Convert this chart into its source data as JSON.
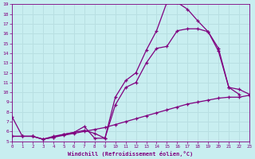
{
  "background_color": "#c8eef0",
  "grid_color": "#b8dfe2",
  "line_color": "#800080",
  "xlabel": "Windchill (Refroidissement éolien,°C)",
  "xlim": [
    0,
    23
  ],
  "ylim": [
    5,
    19
  ],
  "yticks": [
    5,
    6,
    7,
    8,
    9,
    10,
    11,
    12,
    13,
    14,
    15,
    16,
    17,
    18,
    19
  ],
  "xticks": [
    0,
    1,
    2,
    3,
    4,
    5,
    6,
    7,
    8,
    9,
    10,
    11,
    12,
    13,
    14,
    15,
    16,
    17,
    18,
    19,
    20,
    21,
    22,
    23
  ],
  "line1_x": [
    0,
    1,
    2,
    3,
    4,
    5,
    6,
    7,
    8,
    9,
    10,
    11,
    12,
    13,
    14,
    15,
    16,
    17,
    18,
    19,
    20,
    21,
    22
  ],
  "line1_y": [
    7.5,
    5.5,
    5.5,
    5.2,
    5.5,
    5.7,
    5.9,
    6.1,
    5.8,
    5.3,
    9.5,
    11.2,
    12.0,
    14.3,
    16.3,
    19.2,
    19.2,
    18.5,
    17.3,
    16.2,
    14.2,
    10.5,
    9.8
  ],
  "line2_x": [
    0,
    1,
    2,
    3,
    4,
    5,
    6,
    7,
    8,
    9,
    10,
    11,
    12,
    13,
    14,
    15,
    16,
    17,
    18,
    19,
    20,
    21,
    22,
    23
  ],
  "line2_y": [
    5.5,
    5.5,
    5.5,
    5.2,
    5.4,
    5.6,
    5.8,
    6.0,
    6.2,
    6.4,
    6.7,
    7.0,
    7.3,
    7.6,
    7.9,
    8.2,
    8.5,
    8.8,
    9.0,
    9.2,
    9.4,
    9.5,
    9.5,
    9.7
  ],
  "line3_x": [
    0,
    1,
    2,
    3,
    4,
    5,
    6,
    7,
    8,
    9,
    10,
    11,
    12,
    13,
    14,
    15,
    16,
    17,
    18,
    19,
    20,
    21,
    22,
    23
  ],
  "line3_y": [
    5.5,
    5.5,
    5.5,
    5.2,
    5.4,
    5.7,
    5.9,
    6.5,
    5.3,
    5.3,
    8.7,
    10.5,
    11.0,
    13.0,
    14.5,
    14.7,
    16.3,
    16.5,
    16.5,
    16.2,
    14.5,
    10.5,
    10.3,
    9.8
  ]
}
